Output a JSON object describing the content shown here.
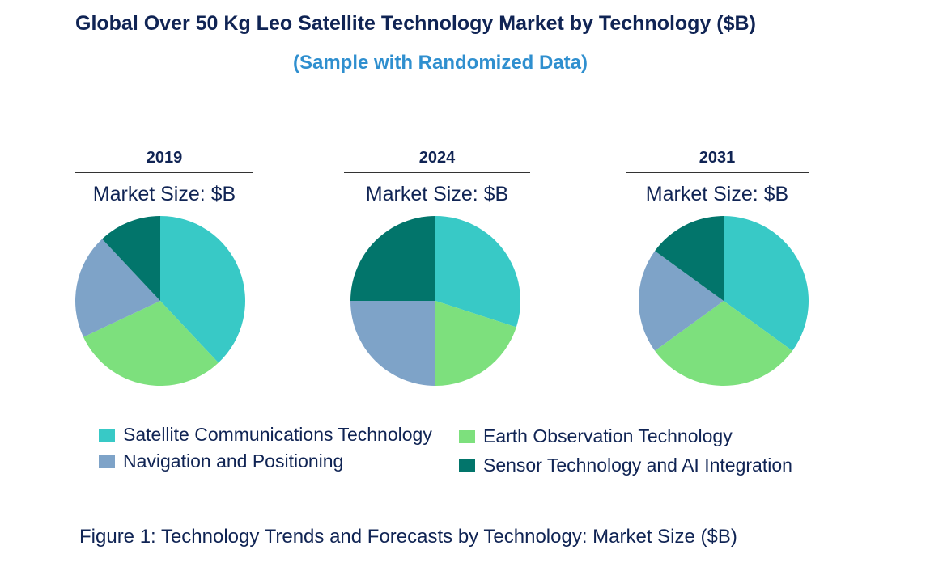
{
  "title": "Global Over 50 Kg Leo Satellite Technology Market by Technology ($B)",
  "subtitle": "(Sample with Randomized Data)",
  "caption": "Figure 1: Technology Trends and Forecasts by Technology: Market Size ($B)",
  "chart_data": {
    "type": "pie",
    "title": "Global Over 50 Kg Leo Satellite Technology Market by Technology ($B)",
    "categories": [
      "Satellite Communications Technology",
      "Earth Observation Technology",
      "Navigation and Positioning",
      "Sensor Technology and AI Integration"
    ],
    "colors": [
      "#38c9c6",
      "#7de07d",
      "#7ea3c8",
      "#02756b"
    ],
    "pies": [
      {
        "year": "2019",
        "label": "Market Size: $B",
        "values": [
          38,
          30,
          20,
          12
        ]
      },
      {
        "year": "2024",
        "label": "Market Size: $B",
        "values": [
          30,
          20,
          25,
          25
        ]
      },
      {
        "year": "2031",
        "label": "Market Size: $B",
        "values": [
          35,
          30,
          20,
          15
        ]
      }
    ]
  },
  "legend": [
    {
      "label": "Satellite Communications Technology",
      "color": "#38c9c6"
    },
    {
      "label": "Earth Observation Technology",
      "color": "#7de07d"
    },
    {
      "label": "Navigation and Positioning",
      "color": "#7ea3c8"
    },
    {
      "label": "Sensor Technology and AI Integration",
      "color": "#02756b"
    }
  ]
}
